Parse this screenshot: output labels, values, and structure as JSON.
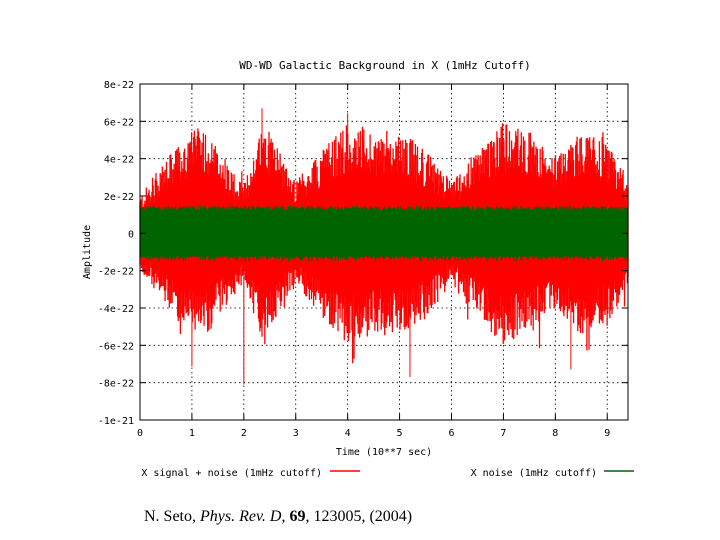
{
  "chart_data": {
    "type": "line",
    "title": "WD-WD Galactic Background in X (1mHz Cutoff)",
    "xlabel": "Time (10**7 sec)",
    "ylabel": "Amplitude",
    "xlim": [
      0,
      9.4
    ],
    "ylim": [
      -1e-21,
      8e-22
    ],
    "x_ticks": [
      0,
      1,
      2,
      3,
      4,
      5,
      6,
      7,
      8,
      9
    ],
    "x_tick_labels": [
      "0",
      "1",
      "2",
      "3",
      "4",
      "5",
      "6",
      "7",
      "8",
      "9"
    ],
    "y_ticks": [
      8e-22,
      6e-22,
      4e-22,
      2e-22,
      0,
      -2e-22,
      -4e-22,
      -6e-22,
      -8e-22,
      -1e-21
    ],
    "y_tick_labels": [
      "8e-22",
      "6e-22",
      "4e-22",
      "2e-22",
      "0",
      "-2e-22",
      "-4e-22",
      "-6e-22",
      "-8e-22",
      "-1e-21"
    ],
    "grid": true,
    "legend_position": "bottom",
    "series": [
      {
        "name": "X signal + noise (1mHz cutoff)",
        "color": "#ff0000",
        "kind": "amplitude-envelope",
        "envelope_x": [
          0,
          0.5,
          1,
          1.25,
          1.5,
          2,
          2.4,
          2.5,
          3,
          3.5,
          4,
          4.5,
          5,
          5.5,
          6,
          6.5,
          7,
          7.5,
          8,
          8.5,
          9,
          9.4
        ],
        "envelope_amplitude": [
          2e-22,
          4e-22,
          5.5e-22,
          5.8e-22,
          4.5e-22,
          2.6e-22,
          6.3e-22,
          5.6e-22,
          2.8e-22,
          4.5e-22,
          6e-22,
          5.5e-22,
          5.5e-22,
          4.5e-22,
          2.8e-22,
          4.5e-22,
          6e-22,
          5.5e-22,
          4e-22,
          5.5e-22,
          4.8e-22,
          3e-22
        ],
        "peak_extremes": [
          6.7e-22,
          -8.1e-22
        ]
      },
      {
        "name": "X noise (1mHz cutoff)",
        "color": "#006400",
        "kind": "constant-band",
        "band": [
          -1.4e-22,
          1.4e-22
        ]
      }
    ]
  },
  "citation": {
    "author": "N. Seto,",
    "journal": "Phys. Rev. D,",
    "volume": "69",
    "rest": ", 123005, (2004)"
  }
}
